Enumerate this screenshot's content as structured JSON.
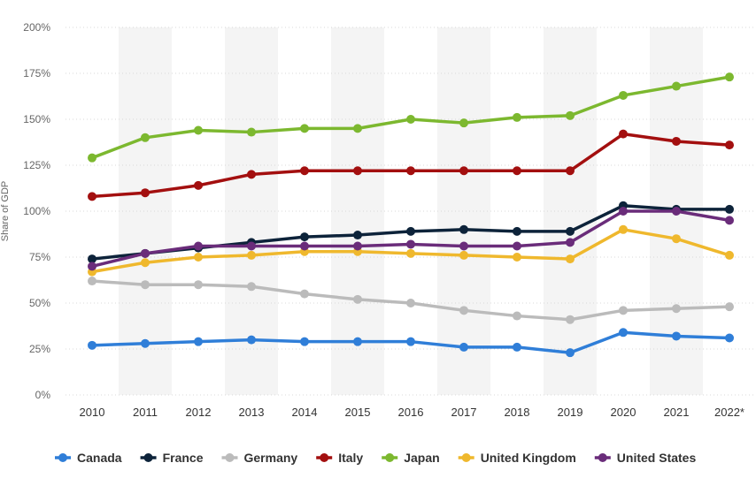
{
  "chart_data": {
    "type": "line",
    "x": [
      "2010",
      "2011",
      "2012",
      "2013",
      "2014",
      "2015",
      "2016",
      "2017",
      "2018",
      "2019",
      "2020",
      "2021",
      "2022*"
    ],
    "ylabel": "Share of GDP",
    "ylim": [
      0,
      200
    ],
    "yticks": [
      "0%",
      "25%",
      "50%",
      "75%",
      "100%",
      "125%",
      "150%",
      "175%",
      "200%"
    ],
    "ytick_values": [
      0,
      25,
      50,
      75,
      100,
      125,
      150,
      175,
      200
    ],
    "grid": "horizontal-dotted",
    "legend_position": "bottom",
    "series": [
      {
        "name": "Canada",
        "color": "#2f7ed8",
        "values": [
          27,
          28,
          29,
          30,
          29,
          29,
          29,
          26,
          26,
          23,
          34,
          32,
          31
        ]
      },
      {
        "name": "France",
        "color": "#0d233a",
        "values": [
          74,
          77,
          80,
          83,
          86,
          87,
          89,
          90,
          89,
          89,
          103,
          101,
          101
        ]
      },
      {
        "name": "Germany",
        "color": "#bbbbbb",
        "values": [
          62,
          60,
          60,
          59,
          55,
          52,
          50,
          46,
          43,
          41,
          46,
          47,
          48
        ]
      },
      {
        "name": "Italy",
        "color": "#a30f0f",
        "values": [
          108,
          110,
          114,
          120,
          122,
          122,
          122,
          122,
          122,
          122,
          142,
          138,
          136
        ]
      },
      {
        "name": "Japan",
        "color": "#7cb82f",
        "values": [
          129,
          140,
          144,
          143,
          145,
          145,
          150,
          148,
          151,
          152,
          163,
          168,
          173
        ]
      },
      {
        "name": "United Kingdom",
        "color": "#efb82d",
        "values": [
          67,
          72,
          75,
          76,
          78,
          78,
          77,
          76,
          75,
          74,
          90,
          85,
          76
        ]
      },
      {
        "name": "United States",
        "color": "#6a2c7a",
        "values": [
          70,
          77,
          81,
          81,
          81,
          81,
          82,
          81,
          81,
          83,
          100,
          100,
          95
        ]
      }
    ]
  }
}
